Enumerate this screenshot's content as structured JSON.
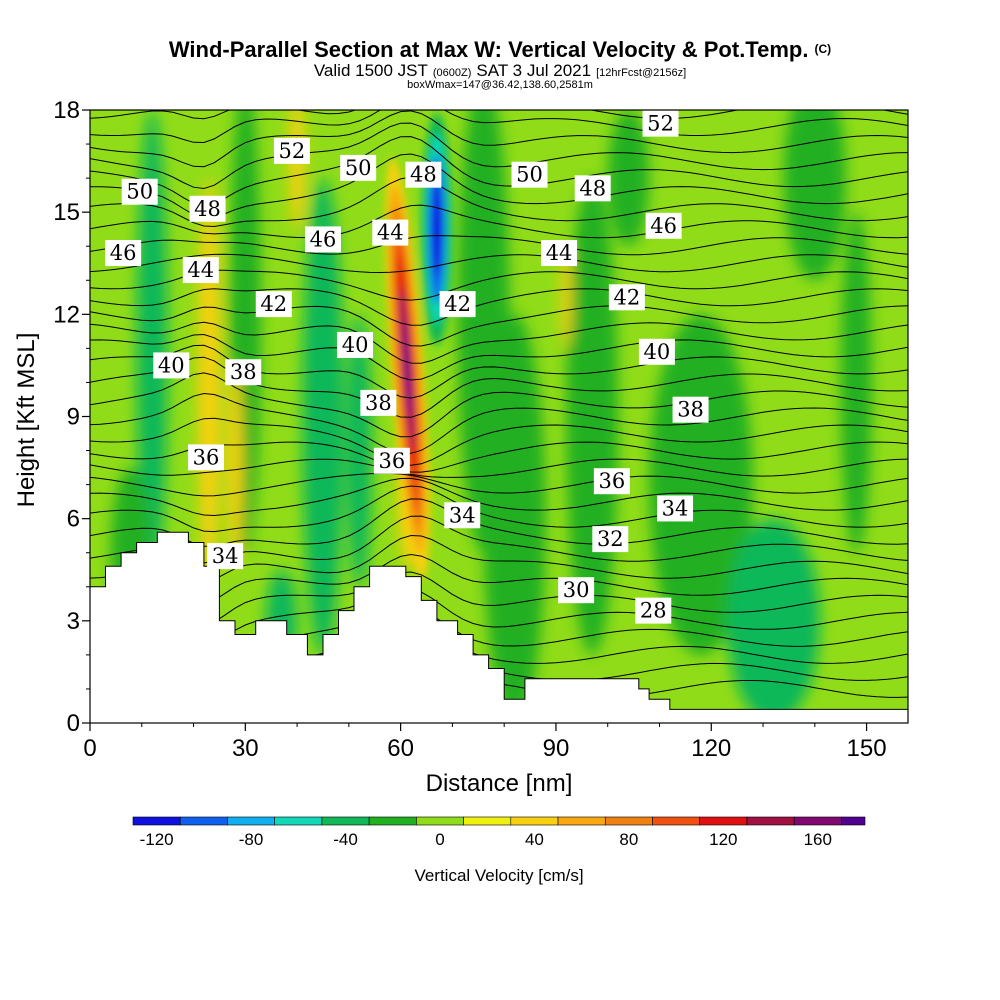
{
  "header": {
    "title": "Wind-Parallel Section at Max W: Vertical Velocity & Pot.Temp.",
    "copyright": "(C)",
    "valid_prefix": "Valid 1500 JST",
    "valid_utc": "(0600Z)",
    "valid_date": "SAT 3 Jul 2021",
    "forecast": "[12hrFcst@2156z]",
    "box_info": "boxWmax=147@36.42,138.60,2581m"
  },
  "chart_data": {
    "type": "heatmap",
    "title": "Wind-Parallel Section at Max W: Vertical Velocity & Pot.Temp.",
    "xlabel": "Distance [nm]",
    "ylabel": "Height [Kft MSL]",
    "xlim": [
      0,
      158
    ],
    "ylim": [
      0,
      18
    ],
    "x_ticks": [
      0,
      30,
      60,
      90,
      120,
      150
    ],
    "y_ticks": [
      0,
      3,
      6,
      9,
      12,
      15,
      18
    ],
    "colorbar": {
      "label": "Vertical Velocity [cm/s]",
      "ticks": [
        -120,
        -80,
        -40,
        0,
        40,
        80,
        120,
        160
      ],
      "range": [
        -130,
        180
      ],
      "levels": [
        -130,
        -110,
        -90,
        -70,
        -50,
        -30,
        -10,
        10,
        30,
        50,
        70,
        90,
        110,
        130,
        150,
        170,
        180
      ],
      "colors": [
        "#1010e0",
        "#1060f0",
        "#10b0f0",
        "#10d8b8",
        "#10b858",
        "#20b020",
        "#90dc18",
        "#f0f010",
        "#f8d010",
        "#f8a810",
        "#f08010",
        "#f05010",
        "#e01010",
        "#a01040",
        "#800870",
        "#500090"
      ]
    },
    "terrain": [
      [
        0,
        4
      ],
      [
        3,
        4
      ],
      [
        3,
        4.6
      ],
      [
        6,
        4.6
      ],
      [
        6,
        5
      ],
      [
        9,
        5
      ],
      [
        9,
        5.3
      ],
      [
        13,
        5.3
      ],
      [
        13,
        5.6
      ],
      [
        19,
        5.6
      ],
      [
        19,
        5.3
      ],
      [
        22,
        5.3
      ],
      [
        22,
        4.6
      ],
      [
        25,
        4.6
      ],
      [
        25,
        3
      ],
      [
        28,
        3
      ],
      [
        28,
        2.6
      ],
      [
        32,
        2.6
      ],
      [
        32,
        3
      ],
      [
        38,
        3
      ],
      [
        38,
        2.6
      ],
      [
        42,
        2.6
      ],
      [
        42,
        2
      ],
      [
        45,
        2
      ],
      [
        45,
        2.6
      ],
      [
        48,
        2.6
      ],
      [
        48,
        3.3
      ],
      [
        51,
        3.3
      ],
      [
        51,
        4
      ],
      [
        54,
        4
      ],
      [
        54,
        4.6
      ],
      [
        61,
        4.6
      ],
      [
        61,
        4.3
      ],
      [
        64,
        4.3
      ],
      [
        64,
        3.6
      ],
      [
        67,
        3.6
      ],
      [
        67,
        3
      ],
      [
        71,
        3
      ],
      [
        71,
        2.6
      ],
      [
        74,
        2.6
      ],
      [
        74,
        2
      ],
      [
        77,
        2
      ],
      [
        77,
        1.6
      ],
      [
        80,
        1.6
      ],
      [
        80,
        0.7
      ],
      [
        84,
        0.7
      ],
      [
        84,
        1.3
      ],
      [
        106,
        1.3
      ],
      [
        106,
        1
      ],
      [
        108,
        1
      ],
      [
        108,
        0.7
      ],
      [
        112,
        0.7
      ],
      [
        112,
        0.4
      ],
      [
        158,
        0.4
      ]
    ],
    "updraft_core": [
      {
        "x": 61,
        "y": 11,
        "w": 170
      }
    ],
    "downdraft_core": [
      {
        "x": 67,
        "y": 14.5,
        "w": -130
      }
    ],
    "theta_labels": [
      {
        "text": "50",
        "x": 9.6,
        "y": 15.6
      },
      {
        "text": "48",
        "x": 22.7,
        "y": 15.1
      },
      {
        "text": "52",
        "x": 39,
        "y": 16.8
      },
      {
        "text": "50",
        "x": 51.8,
        "y": 16.3
      },
      {
        "text": "48",
        "x": 64.4,
        "y": 16.1
      },
      {
        "text": "50",
        "x": 84.9,
        "y": 16.1
      },
      {
        "text": "48",
        "x": 97.1,
        "y": 15.7
      },
      {
        "text": "52",
        "x": 110.2,
        "y": 17.6
      },
      {
        "text": "46",
        "x": 6.4,
        "y": 13.8
      },
      {
        "text": "46",
        "x": 45,
        "y": 14.2
      },
      {
        "text": "44",
        "x": 58,
        "y": 14.4
      },
      {
        "text": "46",
        "x": 110.8,
        "y": 14.6
      },
      {
        "text": "44",
        "x": 21.4,
        "y": 13.3
      },
      {
        "text": "44",
        "x": 90.6,
        "y": 13.8
      },
      {
        "text": "42",
        "x": 35.5,
        "y": 12.3
      },
      {
        "text": "42",
        "x": 71,
        "y": 12.3
      },
      {
        "text": "42",
        "x": 103.7,
        "y": 12.5
      },
      {
        "text": "40",
        "x": 15.7,
        "y": 10.5
      },
      {
        "text": "38",
        "x": 29.6,
        "y": 10.3
      },
      {
        "text": "40",
        "x": 51.2,
        "y": 11.1
      },
      {
        "text": "40",
        "x": 109.5,
        "y": 10.9
      },
      {
        "text": "38",
        "x": 55.7,
        "y": 9.4
      },
      {
        "text": "38",
        "x": 116,
        "y": 9.2
      },
      {
        "text": "36",
        "x": 22.4,
        "y": 7.8
      },
      {
        "text": "36",
        "x": 58.3,
        "y": 7.7
      },
      {
        "text": "36",
        "x": 100.8,
        "y": 7.1
      },
      {
        "text": "34",
        "x": 71.9,
        "y": 6.1
      },
      {
        "text": "34",
        "x": 113,
        "y": 6.3
      },
      {
        "text": "34",
        "x": 26.1,
        "y": 4.9
      },
      {
        "text": "32",
        "x": 100.5,
        "y": 5.4
      },
      {
        "text": "30",
        "x": 93.9,
        "y": 3.9
      },
      {
        "text": "28",
        "x": 108.8,
        "y": 3.3
      }
    ]
  }
}
